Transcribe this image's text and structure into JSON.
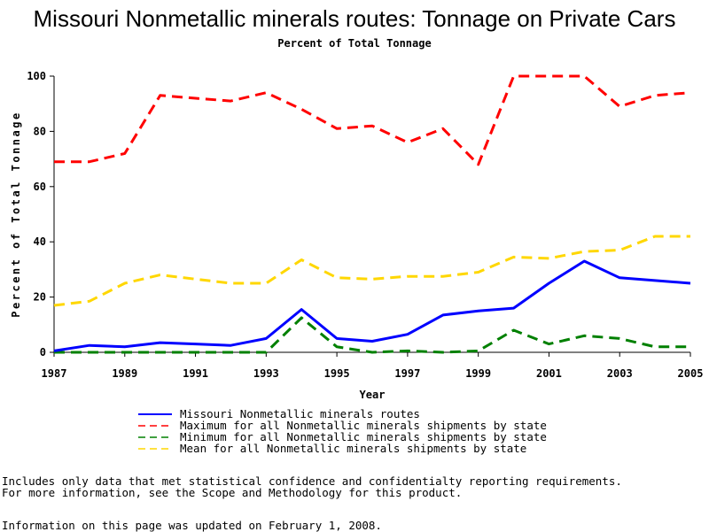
{
  "chart_data": {
    "type": "line",
    "title": "Missouri Nonmetallic minerals routes: Tonnage on Private Cars",
    "subtitle": "Percent of Total Tonnage",
    "xlabel": "Year",
    "ylabel": "Percent of Total Tonnage",
    "xlim": [
      1987,
      2005
    ],
    "ylim": [
      0,
      100
    ],
    "x_ticks": [
      1987,
      1989,
      1991,
      1993,
      1995,
      1997,
      1999,
      2001,
      2003,
      2005
    ],
    "y_ticks": [
      0,
      20,
      40,
      60,
      80,
      100
    ],
    "grid": false,
    "legend_position": "bottom",
    "x": [
      1987,
      1988,
      1989,
      1990,
      1991,
      1992,
      1993,
      1994,
      1995,
      1996,
      1997,
      1998,
      1999,
      2000,
      2001,
      2002,
      2003,
      2004,
      2005
    ],
    "series": [
      {
        "name": "Missouri Nonmetallic minerals routes",
        "color": "#0000ff",
        "style": "solid",
        "values": [
          0.5,
          2.5,
          2.0,
          3.5,
          3.0,
          2.5,
          5.0,
          15.5,
          5.0,
          4.0,
          6.5,
          13.5,
          15.0,
          16.0,
          25.0,
          33.0,
          27.0,
          26.0,
          25.0
        ]
      },
      {
        "name": "Maximum for all Nonmetallic minerals shipments by state",
        "color": "#ff0000",
        "style": "dashed",
        "values": [
          69,
          69,
          72,
          93,
          92,
          91,
          94,
          88,
          81,
          82,
          76,
          81,
          68,
          100,
          100,
          100,
          89,
          93,
          94
        ]
      },
      {
        "name": "Minimum for all Nonmetallic minerals shipments by state",
        "color": "#008000",
        "style": "dashed",
        "values": [
          0,
          0,
          0,
          0,
          0,
          0,
          0,
          12.5,
          2.0,
          0,
          0.5,
          0,
          0.5,
          8.0,
          3.0,
          6.0,
          5.0,
          2.0,
          2.0
        ]
      },
      {
        "name": "Mean for all Nonmetallic minerals shipments by state",
        "color": "#ffd700",
        "style": "dashed",
        "values": [
          17,
          18.5,
          25,
          28,
          26.5,
          25,
          25,
          33.5,
          27,
          26.5,
          27.5,
          27.5,
          29,
          34.5,
          34,
          36.5,
          37,
          42,
          42
        ]
      }
    ]
  },
  "footnotes": {
    "line1": "Includes only data that met statistical confidence and confidentialty reporting requirements.",
    "line2": "For more information, see the Scope and Methodology for this product.",
    "line3": "Information on this page was updated on February 1, 2008."
  }
}
